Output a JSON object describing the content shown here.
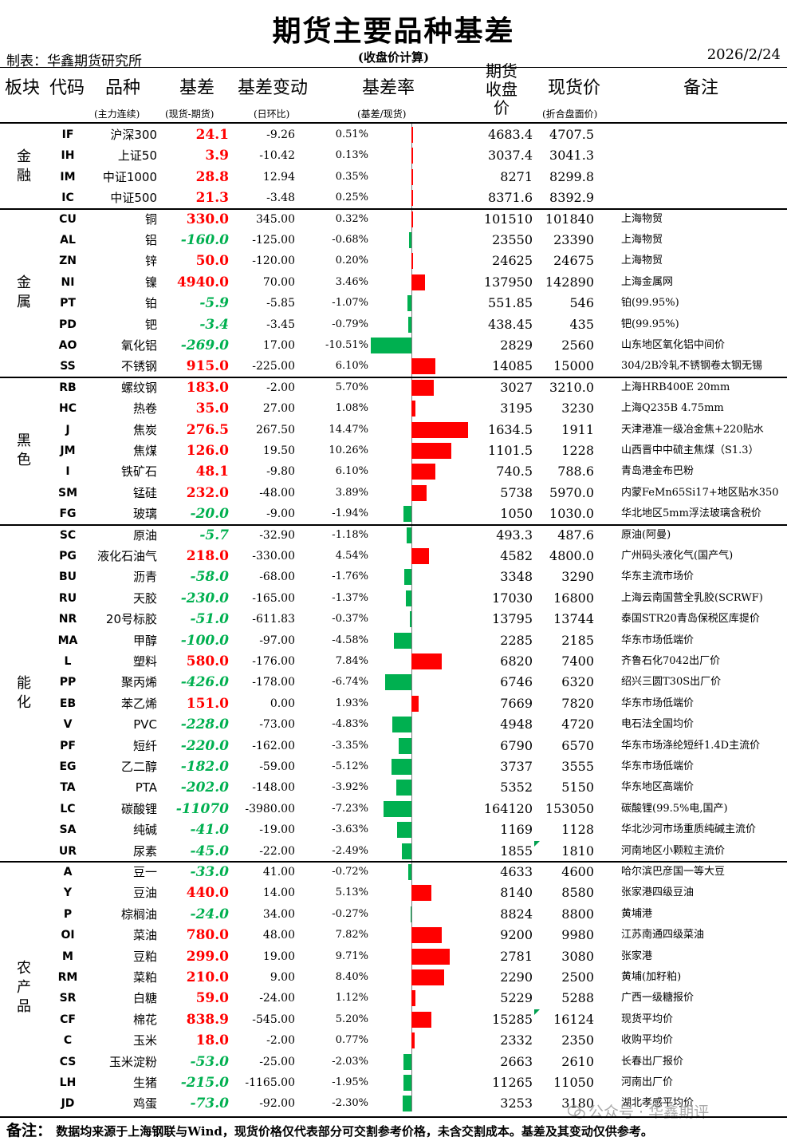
{
  "title": "期货主要品种基差",
  "maker": "制表：华鑫期货研究所",
  "basis_note": "(收盘价计算)",
  "date": "2026/2/24",
  "headers": {
    "sector": "板块",
    "code": "代码",
    "name": "品种",
    "name_sub": "(主力连续)",
    "basis": "基差",
    "basis_sub": "(现货-期货)",
    "change": "基差变动",
    "change_sub": "(日环比)",
    "rate": "基差率",
    "rate_sub": "(基差/现货)",
    "futures_l1": "期货",
    "futures_l2": "收盘",
    "futures_l3": "价",
    "spot": "现货价",
    "spot_sub": "(折合盘面价)",
    "note": "备注"
  },
  "sections": [
    {
      "label": "金融",
      "rows": [
        {
          "code": "IF",
          "name": "沪深300",
          "basis": "24.1",
          "change": "-9.26",
          "rate": "0.51%",
          "rate_value": 0.51,
          "futures": "4683.4",
          "spot": "4707.5",
          "note": ""
        },
        {
          "code": "IH",
          "name": "上证50",
          "basis": "3.9",
          "change": "-10.42",
          "rate": "0.13%",
          "rate_value": 0.13,
          "futures": "3037.4",
          "spot": "3041.3",
          "note": ""
        },
        {
          "code": "IM",
          "name": "中证1000",
          "basis": "28.8",
          "change": "12.94",
          "rate": "0.35%",
          "rate_value": 0.35,
          "futures": "8271",
          "spot": "8299.8",
          "note": ""
        },
        {
          "code": "IC",
          "name": "中证500",
          "basis": "21.3",
          "change": "-3.48",
          "rate": "0.25%",
          "rate_value": 0.25,
          "futures": "8371.6",
          "spot": "8392.9",
          "note": ""
        }
      ]
    },
    {
      "label": "金属",
      "rows": [
        {
          "code": "CU",
          "name": "铜",
          "basis": "330.0",
          "change": "345.00",
          "rate": "0.32%",
          "rate_value": 0.32,
          "futures": "101510",
          "spot": "101840",
          "note": "上海物贸"
        },
        {
          "code": "AL",
          "name": "铝",
          "basis": "-160.0",
          "change": "-125.00",
          "rate": "-0.68%",
          "rate_value": -0.68,
          "futures": "23550",
          "spot": "23390",
          "note": "上海物贸"
        },
        {
          "code": "ZN",
          "name": "锌",
          "basis": "50.0",
          "change": "-120.00",
          "rate": "0.20%",
          "rate_value": 0.2,
          "futures": "24625",
          "spot": "24675",
          "note": "上海物贸"
        },
        {
          "code": "NI",
          "name": "镍",
          "basis": "4940.0",
          "change": "70.00",
          "rate": "3.46%",
          "rate_value": 3.46,
          "futures": "137950",
          "spot": "142890",
          "note": "上海金属网"
        },
        {
          "code": "PT",
          "name": "铂",
          "basis": "-5.9",
          "change": "-5.85",
          "rate": "-1.07%",
          "rate_value": -1.07,
          "futures": "551.85",
          "spot": "546",
          "note": "铂(99.95%)"
        },
        {
          "code": "PD",
          "name": "钯",
          "basis": "-3.4",
          "change": "-3.45",
          "rate": "-0.79%",
          "rate_value": -0.79,
          "futures": "438.45",
          "spot": "435",
          "note": "钯(99.95%)"
        },
        {
          "code": "AO",
          "name": "氧化铝",
          "basis": "-269.0",
          "change": "17.00",
          "rate": "-10.51%",
          "rate_value": -10.51,
          "futures": "2829",
          "spot": "2560",
          "note": "山东地区氧化铝中间价"
        },
        {
          "code": "SS",
          "name": "不锈钢",
          "basis": "915.0",
          "change": "-225.00",
          "rate": "6.10%",
          "rate_value": 6.1,
          "futures": "14085",
          "spot": "15000",
          "note": "304/2B冷轧不锈钢卷太钢无锡"
        }
      ]
    },
    {
      "label": "黑色",
      "rows": [
        {
          "code": "RB",
          "name": "螺纹钢",
          "basis": "183.0",
          "change": "-2.00",
          "rate": "5.70%",
          "rate_value": 5.7,
          "futures": "3027",
          "spot": "3210.0",
          "note": "上海HRB400E 20mm"
        },
        {
          "code": "HC",
          "name": "热卷",
          "basis": "35.0",
          "change": "27.00",
          "rate": "1.08%",
          "rate_value": 1.08,
          "futures": "3195",
          "spot": "3230",
          "note": "上海Q235B 4.75mm"
        },
        {
          "code": "J",
          "name": "焦炭",
          "basis": "276.5",
          "change": "267.50",
          "rate": "14.47%",
          "rate_value": 14.47,
          "futures": "1634.5",
          "spot": "1911",
          "note": "天津港准一级冶金焦+220贴水"
        },
        {
          "code": "JM",
          "name": "焦煤",
          "basis": "126.0",
          "change": "19.50",
          "rate": "10.26%",
          "rate_value": 10.26,
          "futures": "1101.5",
          "spot": "1228",
          "note": "山西晋中中硫主焦煤（S1.3）"
        },
        {
          "code": "I",
          "name": "铁矿石",
          "basis": "48.1",
          "change": "-9.80",
          "rate": "6.10%",
          "rate_value": 6.1,
          "futures": "740.5",
          "spot": "788.6",
          "note": "青岛港金布巴粉"
        },
        {
          "code": "SM",
          "name": "锰硅",
          "basis": "232.0",
          "change": "-48.00",
          "rate": "3.89%",
          "rate_value": 3.89,
          "futures": "5738",
          "spot": "5970.0",
          "note": "内蒙FeMn65Si17+地区贴水350"
        },
        {
          "code": "FG",
          "name": "玻璃",
          "basis": "-20.0",
          "change": "-9.00",
          "rate": "-1.94%",
          "rate_value": -1.94,
          "futures": "1050",
          "spot": "1030.0",
          "note": "华北地区5mm浮法玻璃含税价"
        }
      ]
    },
    {
      "label": "能化",
      "rows": [
        {
          "code": "SC",
          "name": "原油",
          "basis": "-5.7",
          "change": "-32.90",
          "rate": "-1.18%",
          "rate_value": -1.18,
          "futures": "493.3",
          "spot": "487.6",
          "note": "原油(阿曼)"
        },
        {
          "code": "PG",
          "name": "液化石油气",
          "basis": "218.0",
          "change": "-330.00",
          "rate": "4.54%",
          "rate_value": 4.54,
          "futures": "4582",
          "spot": "4800.0",
          "note": "广州码头液化气(国产气)"
        },
        {
          "code": "BU",
          "name": "沥青",
          "basis": "-58.0",
          "change": "-68.00",
          "rate": "-1.76%",
          "rate_value": -1.76,
          "futures": "3348",
          "spot": "3290",
          "note": "华东主流市场价"
        },
        {
          "code": "RU",
          "name": "天胶",
          "basis": "-230.0",
          "change": "-165.00",
          "rate": "-1.37%",
          "rate_value": -1.37,
          "futures": "17030",
          "spot": "16800",
          "note": "上海云南国营全乳胶(SCRWF)"
        },
        {
          "code": "NR",
          "name": "20号标胶",
          "basis": "-51.0",
          "change": "-611.83",
          "rate": "-0.37%",
          "rate_value": -0.37,
          "futures": "13795",
          "spot": "13744",
          "note": "泰国STR20青岛保税区库提价"
        },
        {
          "code": "MA",
          "name": "甲醇",
          "basis": "-100.0",
          "change": "-97.00",
          "rate": "-4.58%",
          "rate_value": -4.58,
          "futures": "2285",
          "spot": "2185",
          "note": "华东市场低端价"
        },
        {
          "code": "L",
          "name": "塑料",
          "basis": "580.0",
          "change": "-176.00",
          "rate": "7.84%",
          "rate_value": 7.84,
          "futures": "6820",
          "spot": "7400",
          "note": "齐鲁石化7042出厂价"
        },
        {
          "code": "PP",
          "name": "聚丙烯",
          "basis": "-426.0",
          "change": "-178.00",
          "rate": "-6.74%",
          "rate_value": -6.74,
          "futures": "6746",
          "spot": "6320",
          "note": "绍兴三圆T30S出厂价"
        },
        {
          "code": "EB",
          "name": "苯乙烯",
          "basis": "151.0",
          "change": "0.00",
          "rate": "1.93%",
          "rate_value": 1.93,
          "futures": "7669",
          "spot": "7820",
          "note": "华东市场低端价"
        },
        {
          "code": "V",
          "name": "PVC",
          "basis": "-228.0",
          "change": "-73.00",
          "rate": "-4.83%",
          "rate_value": -4.83,
          "futures": "4948",
          "spot": "4720",
          "note": "电石法全国均价"
        },
        {
          "code": "PF",
          "name": "短纤",
          "basis": "-220.0",
          "change": "-162.00",
          "rate": "-3.35%",
          "rate_value": -3.35,
          "futures": "6790",
          "spot": "6570",
          "note": "华东市场涤纶短纤1.4D主流价"
        },
        {
          "code": "EG",
          "name": "乙二醇",
          "basis": "-182.0",
          "change": "-59.00",
          "rate": "-5.12%",
          "rate_value": -5.12,
          "futures": "3737",
          "spot": "3555",
          "note": "华东市场低端价"
        },
        {
          "code": "TA",
          "name": "PTA",
          "basis": "-202.0",
          "change": "-148.00",
          "rate": "-3.92%",
          "rate_value": -3.92,
          "futures": "5352",
          "spot": "5150",
          "note": "华东地区高端价"
        },
        {
          "code": "LC",
          "name": "碳酸锂",
          "basis": "-11070",
          "change": "-3980.00",
          "rate": "-7.23%",
          "rate_value": -7.23,
          "futures": "164120",
          "spot": "153050",
          "note": "碳酸锂(99.5%电,国产)"
        },
        {
          "code": "SA",
          "name": "纯碱",
          "basis": "-41.0",
          "change": "-19.00",
          "rate": "-3.63%",
          "rate_value": -3.63,
          "futures": "1169",
          "spot": "1128",
          "note": "华北沙河市场重质纯碱主流价"
        },
        {
          "code": "UR",
          "name": "尿素",
          "basis": "-45.0",
          "change": "-22.00",
          "rate": "-2.49%",
          "rate_value": -2.49,
          "futures": "1855",
          "spot": "1810",
          "note": "河南地区小颗粒主流价",
          "flag": true
        }
      ]
    },
    {
      "label": "农产品",
      "rows": [
        {
          "code": "A",
          "name": "豆一",
          "basis": "-33.0",
          "change": "41.00",
          "rate": "-0.72%",
          "rate_value": -0.72,
          "futures": "4633",
          "spot": "4600",
          "note": "哈尔滨巴彦国一等大豆"
        },
        {
          "code": "Y",
          "name": "豆油",
          "basis": "440.0",
          "change": "14.00",
          "rate": "5.13%",
          "rate_value": 5.13,
          "futures": "8140",
          "spot": "8580",
          "note": "张家港四级豆油"
        },
        {
          "code": "P",
          "name": "棕榈油",
          "basis": "-24.0",
          "change": "34.00",
          "rate": "-0.27%",
          "rate_value": -0.27,
          "futures": "8824",
          "spot": "8800",
          "note": "黄埔港"
        },
        {
          "code": "OI",
          "name": "菜油",
          "basis": "780.0",
          "change": "48.00",
          "rate": "7.82%",
          "rate_value": 7.82,
          "futures": "9200",
          "spot": "9980",
          "note": "江苏南通四级菜油"
        },
        {
          "code": "M",
          "name": "豆粕",
          "basis": "299.0",
          "change": "19.00",
          "rate": "9.71%",
          "rate_value": 9.71,
          "futures": "2781",
          "spot": "3080",
          "note": "张家港"
        },
        {
          "code": "RM",
          "name": "菜粕",
          "basis": "210.0",
          "change": "9.00",
          "rate": "8.40%",
          "rate_value": 8.4,
          "futures": "2290",
          "spot": "2500",
          "note": "黄埔(加籽粕)"
        },
        {
          "code": "SR",
          "name": "白糖",
          "basis": "59.0",
          "change": "-24.00",
          "rate": "1.12%",
          "rate_value": 1.12,
          "futures": "5229",
          "spot": "5288",
          "note": "广西一级糖报价"
        },
        {
          "code": "CF",
          "name": "棉花",
          "basis": "838.9",
          "change": "-545.00",
          "rate": "5.20%",
          "rate_value": 5.2,
          "futures": "15285",
          "spot": "16124",
          "note": "现货平均价",
          "flag": true
        },
        {
          "code": "C",
          "name": "玉米",
          "basis": "18.0",
          "change": "-2.00",
          "rate": "0.77%",
          "rate_value": 0.77,
          "futures": "2332",
          "spot": "2350",
          "note": "收购平均价"
        },
        {
          "code": "CS",
          "name": "玉米淀粉",
          "basis": "-53.0",
          "change": "-25.00",
          "rate": "-2.03%",
          "rate_value": -2.03,
          "futures": "2663",
          "spot": "2610",
          "note": "长春出厂报价"
        },
        {
          "code": "LH",
          "name": "生猪",
          "basis": "-215.0",
          "change": "-1165.00",
          "rate": "-1.95%",
          "rate_value": -1.95,
          "futures": "11265",
          "spot": "11050",
          "note": "河南出厂价"
        },
        {
          "code": "JD",
          "name": "鸡蛋",
          "basis": "-73.0",
          "change": "-92.00",
          "rate": "-2.30%",
          "rate_value": -2.3,
          "futures": "3253",
          "spot": "3180",
          "note": "湖北孝感平均价"
        }
      ]
    }
  ],
  "footer_label": "备注：",
  "footer_text": "数据均来源于上海钢联与Wind，现货价格仅代表部分可交割参考价格，未含交割成本。基差及其变动仅供参考。",
  "watermark": "公众号 · 华鑫期评",
  "colors": {
    "positive": "#ff0000",
    "negative": "#00b050"
  }
}
